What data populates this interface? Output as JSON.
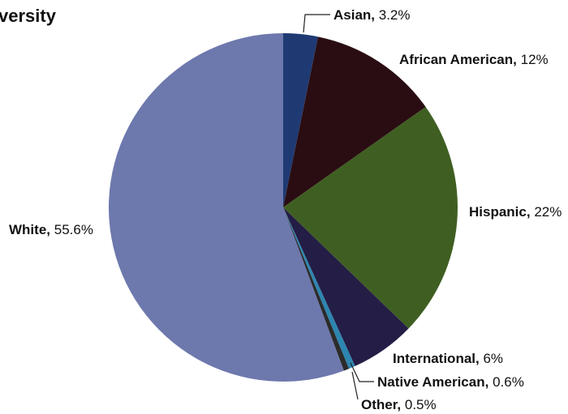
{
  "chart_data": {
    "type": "pie",
    "title": "versity",
    "slices": [
      {
        "label": "Asian",
        "value_label": "3.2%",
        "value": 3.2,
        "color": "#1f3a73"
      },
      {
        "label": "African American",
        "value_label": "12%",
        "value": 12,
        "color": "#2a0d12"
      },
      {
        "label": "Hispanic",
        "value_label": "22%",
        "value": 22,
        "color": "#3f5f22"
      },
      {
        "label": "International",
        "value_label": "6%",
        "value": 6,
        "color": "#241d45"
      },
      {
        "label": "Native American",
        "value_label": "0.6%",
        "value": 0.6,
        "color": "#2d86b0"
      },
      {
        "label": "Other",
        "value_label": "0.5%",
        "value": 0.5,
        "color": "#2b2b2b"
      },
      {
        "label": "White",
        "value_label": "55.6%",
        "value": 55.6,
        "color": "#6d78ad"
      }
    ]
  }
}
